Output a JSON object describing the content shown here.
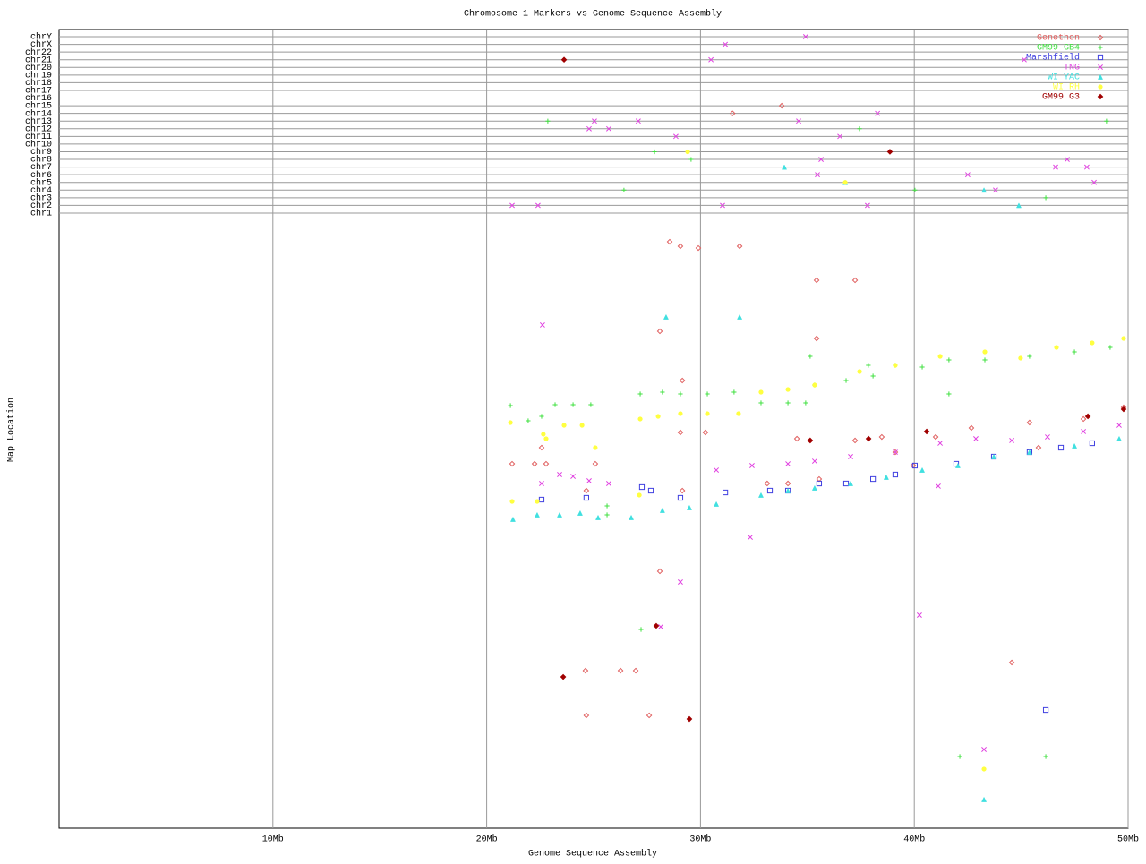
{
  "chart_data": {
    "type": "scatter",
    "title": "Chromosome 1 Markers vs Genome Sequence Assembly",
    "xlabel": "Genome Sequence Assembly",
    "ylabel": "Map Location",
    "xlim": [
      0,
      50
    ],
    "xticks": [
      {
        "value": 10,
        "label": "10Mb"
      },
      {
        "value": 20,
        "label": "20Mb"
      },
      {
        "value": 30,
        "label": "30Mb"
      },
      {
        "value": 40,
        "label": "40Mb"
      },
      {
        "value": 50,
        "label": "50Mb"
      }
    ],
    "ylim": [
      0,
      100
    ],
    "grid": true,
    "legend": "upper right",
    "chromosomes": [
      "chr1",
      "chr2",
      "chr3",
      "chr4",
      "chr5",
      "chr6",
      "chr7",
      "chr8",
      "chr9",
      "chr10",
      "chr11",
      "chr12",
      "chr13",
      "chr14",
      "chr15",
      "chr16",
      "chr17",
      "chr18",
      "chr19",
      "chr20",
      "chr21",
      "chr22",
      "chrX",
      "chrY"
    ],
    "series": [
      {
        "name": "Genethon",
        "color": "#e06060",
        "marker": "diamond",
        "x": [
          21.19,
          22.24,
          22.57,
          22.78,
          24.66,
          25.08,
          28.1,
          28.56,
          29.06,
          29.9,
          31.83,
          35.43,
          37.23,
          35.43,
          29.15,
          29.06,
          30.23,
          34.51,
          35.13,
          37.23,
          38.48,
          41.0,
          42.67,
          45.39,
          47.91,
          49.79,
          44.56,
          24.62,
          26.26,
          26.97,
          24.66,
          27.6,
          28.1,
          29.15,
          33.12,
          34.09,
          35.55,
          39.11,
          39.95,
          45.81
        ],
        "values": [
          59.85,
          59.85,
          62.5,
          59.85,
          55.44,
          59.85,
          81.62,
          96.32,
          95.59,
          95.29,
          95.59,
          90.0,
          90.0,
          80.44,
          73.53,
          65.0,
          65.0,
          63.97,
          63.68,
          63.68,
          64.26,
          64.26,
          65.74,
          66.62,
          67.21,
          69.12,
          27.21,
          25.88,
          25.88,
          25.88,
          18.53,
          18.53,
          42.21,
          55.44,
          56.62,
          56.62,
          57.35,
          61.76,
          59.56,
          62.5
        ],
        "chr_x": [
          31.5,
          33.8
        ],
        "chr": [
          "chr14",
          "chr15"
        ]
      },
      {
        "name": "GM99 GB4",
        "color": "#40e040",
        "marker": "plus",
        "x": [
          21.11,
          21.94,
          22.57,
          23.2,
          24.04,
          24.87,
          27.18,
          28.22,
          29.06,
          30.32,
          31.57,
          32.83,
          34.09,
          34.92,
          35.34,
          36.81,
          38.07,
          39.11,
          40.37,
          41.62,
          43.3,
          45.39,
          47.49,
          49.16,
          35.13,
          41.62,
          27.22,
          42.13,
          46.15,
          25.63,
          25.63,
          37.85
        ],
        "values": [
          69.41,
          66.91,
          67.65,
          69.56,
          69.56,
          69.56,
          71.32,
          71.62,
          71.32,
          71.32,
          71.62,
          69.85,
          69.85,
          69.85,
          72.79,
          73.53,
          74.26,
          76.03,
          75.74,
          76.91,
          76.91,
          77.5,
          78.24,
          78.97,
          77.5,
          71.32,
          32.65,
          11.76,
          11.76,
          52.94,
          51.47,
          76.03
        ],
        "chr_x": [
          22.86,
          26.42,
          27.85,
          29.56,
          37.44,
          40.03,
          46.15,
          48.99
        ],
        "chr": [
          "chr13",
          "chr4",
          "chr9",
          "chr8",
          "chr12",
          "chr4",
          "chr3",
          "chr13"
        ]
      },
      {
        "name": "Marshfield",
        "color": "#4040e0",
        "marker": "square",
        "x": [
          22.57,
          24.66,
          27.26,
          27.68,
          29.06,
          31.16,
          33.25,
          34.09,
          35.55,
          36.81,
          38.07,
          39.11,
          40.03,
          41.96,
          43.72,
          45.39,
          46.86,
          48.32,
          46.15
        ],
        "values": [
          53.97,
          54.26,
          56.03,
          55.44,
          54.26,
          55.15,
          55.44,
          55.44,
          56.62,
          56.62,
          57.35,
          58.09,
          59.56,
          59.85,
          61.03,
          61.76,
          62.5,
          63.24,
          19.41
        ],
        "chr_x": [],
        "chr": []
      },
      {
        "name": "TNG",
        "color": "#e040e0",
        "marker": "x",
        "x": [
          22.61,
          22.57,
          23.41,
          24.04,
          24.79,
          25.71,
          30.74,
          32.41,
          34.09,
          35.34,
          37.02,
          39.11,
          41.21,
          42.88,
          44.56,
          46.23,
          47.91,
          49.58,
          41.12,
          32.33,
          40.24,
          28.14,
          29.06,
          43.26
        ],
        "values": [
          82.65,
          56.62,
          58.09,
          57.79,
          57.06,
          56.62,
          58.82,
          59.56,
          59.85,
          60.29,
          61.03,
          61.76,
          63.24,
          63.97,
          63.68,
          64.26,
          65.15,
          66.18,
          56.18,
          47.79,
          35.0,
          33.09,
          40.44,
          12.94
        ],
        "chr_x": [
          21.19,
          22.4,
          25.04,
          24.79,
          25.71,
          27.09,
          28.85,
          30.49,
          31.16,
          34.92,
          31.03,
          34.59,
          35.64,
          36.52,
          35.47,
          37.81,
          38.28,
          42.5,
          43.8,
          45.14,
          46.61,
          47.15,
          48.07,
          48.41
        ],
        "chr": [
          "chr2",
          "chr2",
          "chr13",
          "chr12",
          "chr12",
          "chr13",
          "chr11",
          "chr21",
          "chrX",
          "chrY",
          "chr2",
          "chr13",
          "chr8",
          "chr11",
          "chr6",
          "chr2",
          "chr14",
          "chr6",
          "chr4",
          "chr21",
          "chr7",
          "chr8",
          "chr7",
          "chr5"
        ]
      },
      {
        "name": "WI YAC",
        "color": "#40e0e0",
        "marker": "triangle",
        "x": [
          21.23,
          22.36,
          23.41,
          24.37,
          25.21,
          26.76,
          28.22,
          29.48,
          30.74,
          32.83,
          34.09,
          35.34,
          37.02,
          38.69,
          40.37,
          42.04,
          43.72,
          45.39,
          47.49,
          49.58,
          28.39,
          31.83,
          43.26
        ],
        "values": [
          50.74,
          51.47,
          51.47,
          51.76,
          51.03,
          51.03,
          52.21,
          52.65,
          53.24,
          54.71,
          55.44,
          55.88,
          56.62,
          57.65,
          58.82,
          59.56,
          61.03,
          61.76,
          62.79,
          63.97,
          83.97,
          83.97,
          4.71
        ],
        "chr_x": [
          33.92,
          36.77,
          43.26,
          44.89
        ],
        "chr": [
          "chr7",
          "chr5",
          "chr4",
          "chr2"
        ]
      },
      {
        "name": "WI RH",
        "color": "#ffff40",
        "marker": "dot",
        "x": [
          21.11,
          22.65,
          23.62,
          24.46,
          25.08,
          27.18,
          28.02,
          29.06,
          30.32,
          31.78,
          32.83,
          34.09,
          35.34,
          37.44,
          39.11,
          41.21,
          43.3,
          44.97,
          46.65,
          48.32,
          49.79,
          21.19,
          22.36,
          27.14,
          43.26,
          22.78
        ],
        "values": [
          66.62,
          64.71,
          66.18,
          66.18,
          62.5,
          67.21,
          67.65,
          68.09,
          68.09,
          68.09,
          71.62,
          72.06,
          72.79,
          75.0,
          76.03,
          77.5,
          78.24,
          77.21,
          78.97,
          79.71,
          80.44,
          53.68,
          53.68,
          54.71,
          9.71,
          63.97
        ],
        "chr_x": [
          29.4,
          36.77
        ],
        "chr": [
          "chr9",
          "chr5"
        ]
      },
      {
        "name": "GM99 G3",
        "color": "#a00000",
        "marker": "filled-diamond",
        "x": [
          23.58,
          27.93,
          29.48,
          35.13,
          40.58,
          48.12,
          37.86,
          49.79
        ],
        "values": [
          24.85,
          33.24,
          17.94,
          63.68,
          65.15,
          67.65,
          63.97,
          68.82
        ],
        "chr_x": [
          23.62,
          38.86
        ],
        "chr": [
          "chr21",
          "chr9"
        ]
      }
    ]
  }
}
